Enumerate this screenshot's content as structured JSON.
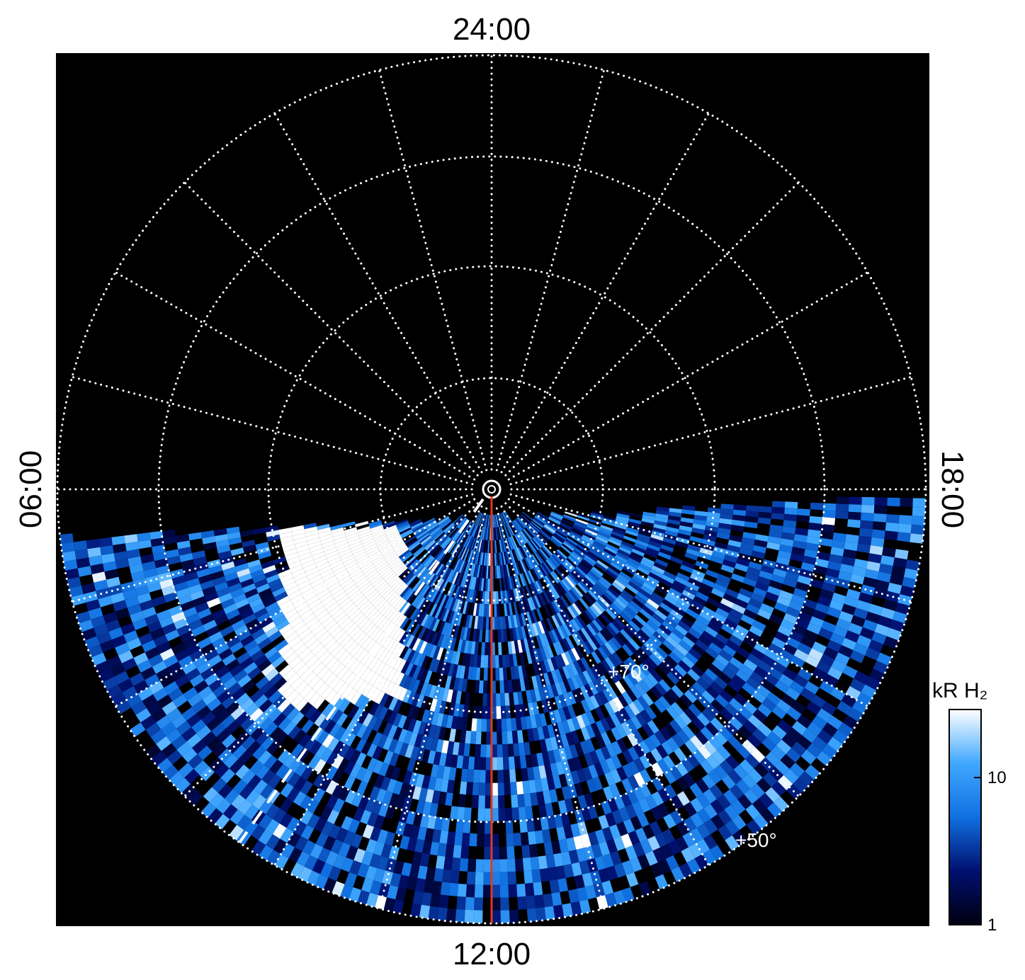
{
  "chart_data": {
    "type": "polar",
    "local_time_labels": {
      "top": "24:00",
      "bottom": "12:00",
      "left": "06:00",
      "right": "18:00"
    },
    "latitude_labels": [
      "+70°",
      "+50°"
    ],
    "colorbar": {
      "label": "kR H₂",
      "scale": "log",
      "clim": [
        1,
        29
      ],
      "ticks": [
        1,
        10
      ],
      "colors": [
        "#000010",
        "#001070",
        "#1070e0",
        "#40a8ff",
        "#ffffff"
      ]
    },
    "meridian_color": "#e03a1a"
  }
}
